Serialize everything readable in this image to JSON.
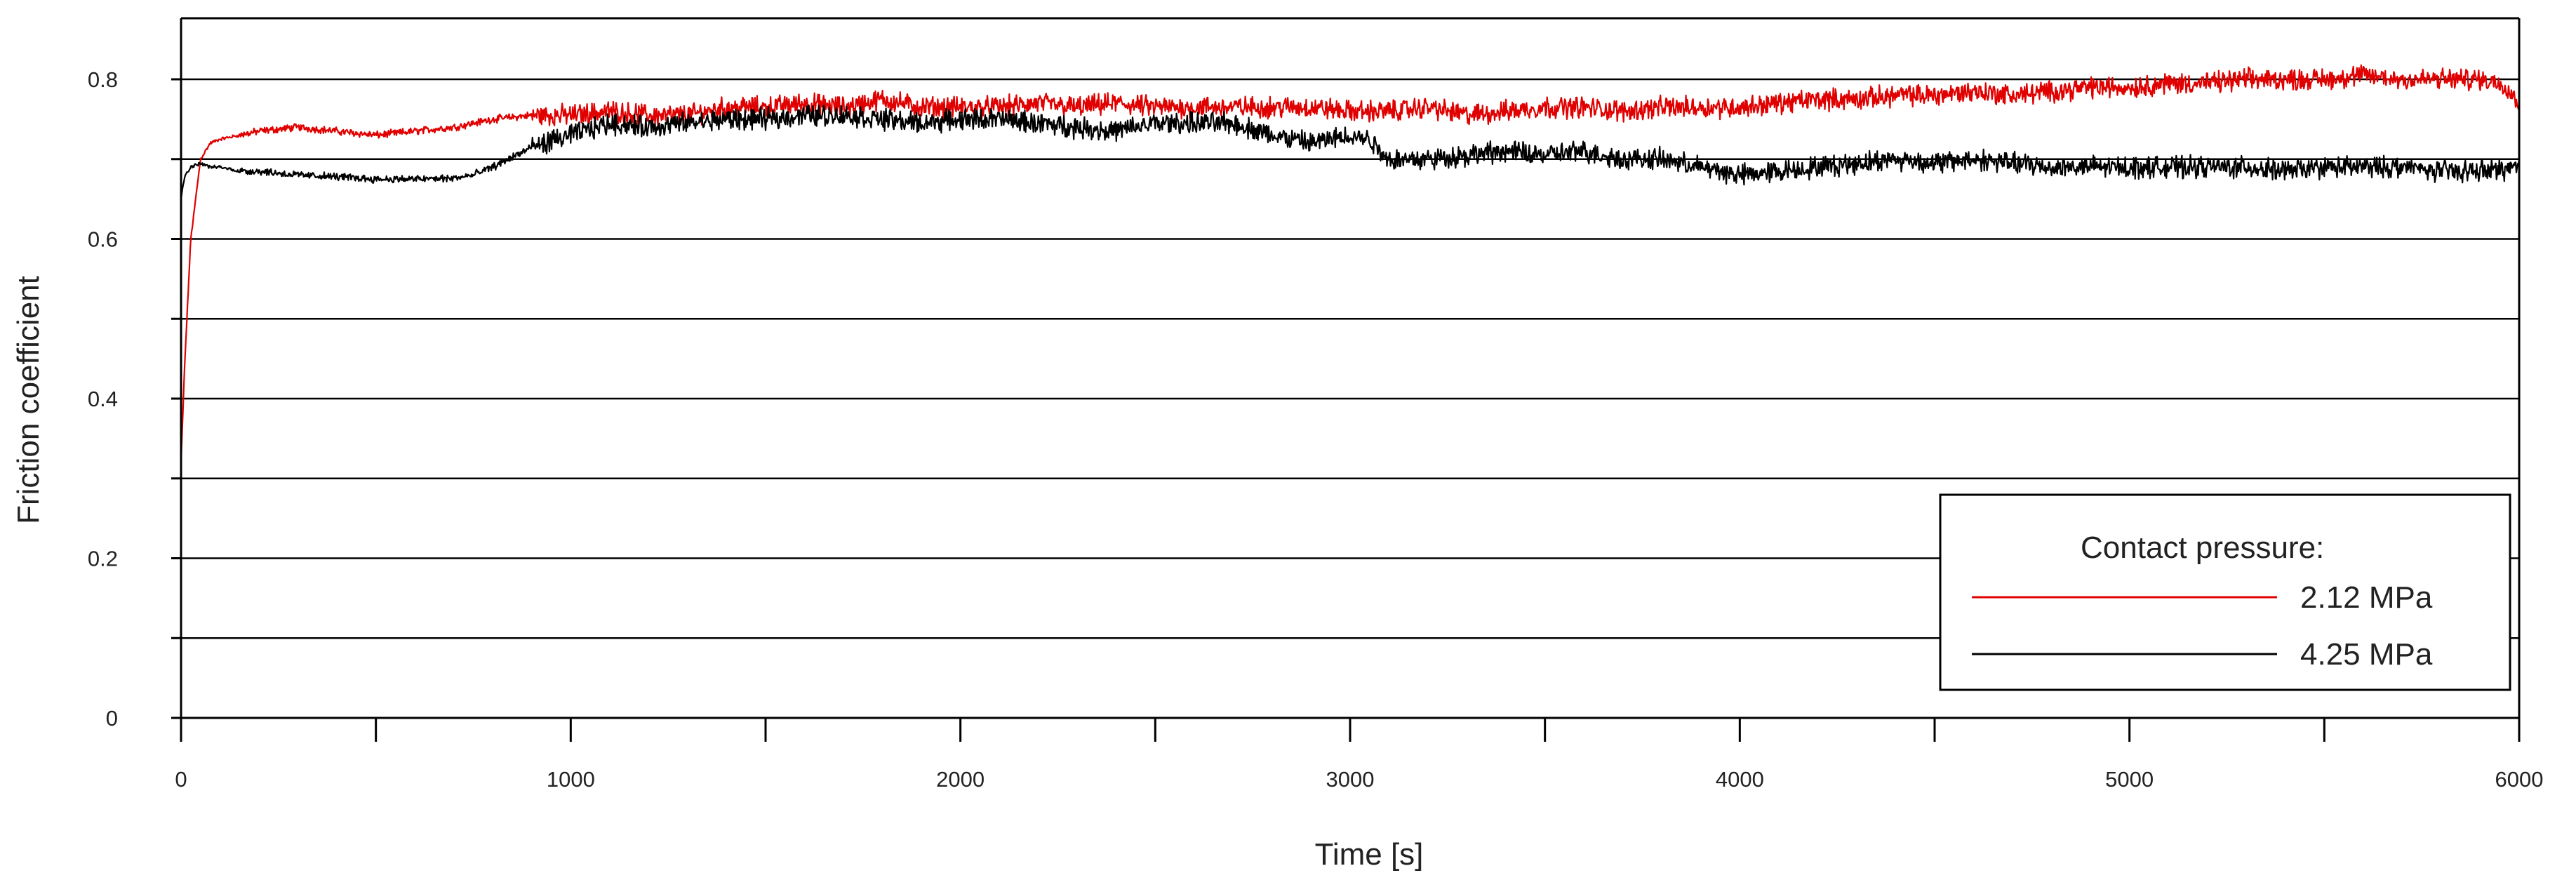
{
  "chart_data": {
    "type": "line",
    "xlabel": "Time [s]",
    "ylabel": "Friction coefficient",
    "xlim": [
      0,
      6000
    ],
    "ylim": [
      0,
      0.85
    ],
    "x_ticks": [
      0,
      1000,
      2000,
      3000,
      4000,
      5000,
      6000
    ],
    "x_minor_ticks": [
      500,
      1500,
      2500,
      3500,
      4500,
      5500
    ],
    "y_ticks": [
      0,
      0.2,
      0.4,
      0.6,
      0.8
    ],
    "y_tick_labels": [
      "0",
      "0.2",
      "0.4",
      "0.6",
      "0.8"
    ],
    "y_gridlines": [
      0.1,
      0.2,
      0.3,
      0.4,
      0.5,
      0.6,
      0.7,
      0.8
    ],
    "grid": "horizontal",
    "legend": {
      "title": "Contact pressure:",
      "placement": "bottom-right"
    },
    "series": [
      {
        "name": "2.12 MPa",
        "color": "#e00000",
        "noise": 0.02,
        "x": [
          0,
          10,
          25,
          50,
          75,
          100,
          150,
          200,
          300,
          400,
          500,
          600,
          700,
          800,
          900,
          1000,
          1100,
          1200,
          1300,
          1400,
          1500,
          1600,
          1700,
          1800,
          1900,
          2000,
          2100,
          2200,
          2300,
          2400,
          2500,
          2600,
          2700,
          2800,
          2900,
          3000,
          3100,
          3200,
          3300,
          3400,
          3500,
          3600,
          3700,
          3800,
          3900,
          4000,
          4100,
          4200,
          4300,
          4400,
          4500,
          4600,
          4700,
          4800,
          4900,
          5000,
          5100,
          5200,
          5300,
          5400,
          5500,
          5600,
          5700,
          5800,
          5900,
          5960,
          6000
        ],
        "y": [
          0.32,
          0.45,
          0.6,
          0.7,
          0.72,
          0.725,
          0.73,
          0.735,
          0.74,
          0.735,
          0.73,
          0.735,
          0.74,
          0.75,
          0.755,
          0.755,
          0.76,
          0.755,
          0.755,
          0.765,
          0.765,
          0.77,
          0.765,
          0.775,
          0.765,
          0.765,
          0.765,
          0.77,
          0.765,
          0.77,
          0.765,
          0.765,
          0.765,
          0.765,
          0.765,
          0.76,
          0.76,
          0.765,
          0.755,
          0.76,
          0.765,
          0.765,
          0.76,
          0.765,
          0.765,
          0.765,
          0.77,
          0.775,
          0.775,
          0.78,
          0.78,
          0.785,
          0.78,
          0.785,
          0.79,
          0.79,
          0.795,
          0.795,
          0.8,
          0.8,
          0.8,
          0.805,
          0.8,
          0.8,
          0.8,
          0.795,
          0.77
        ]
      },
      {
        "name": "4.25 MPa",
        "color": "#000000",
        "noise": 0.02,
        "x": [
          0,
          10,
          25,
          50,
          75,
          100,
          150,
          200,
          300,
          400,
          500,
          600,
          700,
          750,
          800,
          900,
          1000,
          1100,
          1200,
          1300,
          1400,
          1500,
          1600,
          1700,
          1800,
          1900,
          2000,
          2100,
          2200,
          2300,
          2400,
          2500,
          2600,
          2700,
          2800,
          2900,
          3000,
          3050,
          3100,
          3200,
          3300,
          3400,
          3500,
          3600,
          3700,
          3800,
          3900,
          4000,
          4100,
          4200,
          4300,
          4400,
          4500,
          4600,
          4700,
          4800,
          4900,
          5000,
          5100,
          5200,
          5300,
          5400,
          5500,
          5600,
          5700,
          5800,
          5900,
          6000
        ],
        "y": [
          0.65,
          0.68,
          0.69,
          0.695,
          0.69,
          0.69,
          0.685,
          0.685,
          0.68,
          0.678,
          0.675,
          0.675,
          0.676,
          0.68,
          0.69,
          0.715,
          0.73,
          0.745,
          0.74,
          0.745,
          0.75,
          0.75,
          0.755,
          0.755,
          0.75,
          0.745,
          0.75,
          0.75,
          0.745,
          0.74,
          0.735,
          0.745,
          0.745,
          0.745,
          0.73,
          0.72,
          0.73,
          0.725,
          0.7,
          0.7,
          0.705,
          0.71,
          0.705,
          0.71,
          0.7,
          0.7,
          0.69,
          0.68,
          0.685,
          0.69,
          0.695,
          0.7,
          0.695,
          0.7,
          0.695,
          0.69,
          0.69,
          0.69,
          0.69,
          0.69,
          0.69,
          0.685,
          0.69,
          0.69,
          0.69,
          0.685,
          0.685,
          0.69
        ]
      }
    ]
  }
}
